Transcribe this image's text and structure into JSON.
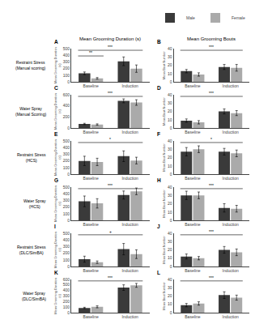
{
  "chart_data": [
    {
      "type": "bar",
      "title": "Mean Grooming Duration (s)",
      "panel_label": "A",
      "row_label": "Restraint Stress\n(Manual scoring)",
      "ylabel": "Mean Grooming Duration\n(s)",
      "categories": [
        "Baseline",
        "Induction"
      ],
      "series": [
        {
          "name": "Male",
          "color": "#3a3a3a",
          "values": [
            130,
            310
          ],
          "errors": [
            20,
            65
          ]
        },
        {
          "name": "Female",
          "color": "#aaaaaa",
          "values": [
            55,
            200
          ],
          "errors": [
            12,
            55
          ]
        }
      ],
      "ylim": [
        0,
        500
      ],
      "yticks": [
        0,
        100,
        200,
        300,
        400,
        500
      ],
      "grid": false,
      "sig_between": "***",
      "sig_within": "**"
    },
    {
      "type": "bar",
      "title": "Mean Grooming Bouts",
      "panel_label": "B",
      "legend": "upper right",
      "ylabel": "Mean Bout Number",
      "categories": [
        "Baseline",
        "Induction"
      ],
      "series": [
        {
          "name": "Male",
          "color": "#3a3a3a",
          "values": [
            13,
            18
          ],
          "errors": [
            2,
            3
          ]
        },
        {
          "name": "Female",
          "color": "#aaaaaa",
          "values": [
            9,
            17
          ],
          "errors": [
            2,
            4
          ]
        }
      ],
      "ylim": [
        0,
        40
      ],
      "yticks": [
        0,
        10,
        20,
        30,
        40
      ],
      "grid": false,
      "sig_between": "***"
    },
    {
      "type": "bar",
      "panel_label": "C",
      "row_label": "Water Spray\n(Manual Scoring)",
      "ylabel": "Mean Grooming Duration\n(s)",
      "categories": [
        "Baseline",
        "Induction"
      ],
      "series": [
        {
          "name": "Male",
          "color": "#3a3a3a",
          "values": [
            75,
            490
          ],
          "errors": [
            12,
            35
          ]
        },
        {
          "name": "Female",
          "color": "#aaaaaa",
          "values": [
            65,
            460
          ],
          "errors": [
            12,
            50
          ]
        }
      ],
      "ylim": [
        0,
        600
      ],
      "yticks": [
        0,
        200,
        400,
        600
      ],
      "grid": false,
      "sig_between": "***"
    },
    {
      "type": "bar",
      "panel_label": "D",
      "ylabel": "Mean Bout Number",
      "categories": [
        "Baseline",
        "Induction"
      ],
      "series": [
        {
          "name": "Male",
          "color": "#3a3a3a",
          "values": [
            9,
            20
          ],
          "errors": [
            2,
            3
          ]
        },
        {
          "name": "Female",
          "color": "#aaaaaa",
          "values": [
            7,
            18
          ],
          "errors": [
            2,
            3
          ]
        }
      ],
      "ylim": [
        0,
        40
      ],
      "yticks": [
        0,
        10,
        20,
        30,
        40
      ],
      "grid": false,
      "sig_between": "***"
    },
    {
      "type": "bar",
      "panel_label": "E",
      "row_label": "Restraint Stress\n(HCS)",
      "ylabel": "Mean Grooming Duration\n(s)",
      "categories": [
        "Baseline",
        "Induction"
      ],
      "series": [
        {
          "name": "Male",
          "color": "#3a3a3a",
          "values": [
            200,
            270
          ],
          "errors": [
            70,
            80
          ]
        },
        {
          "name": "Female",
          "color": "#aaaaaa",
          "values": [
            185,
            205
          ],
          "errors": [
            55,
            50
          ]
        }
      ],
      "ylim": [
        0,
        500
      ],
      "yticks": [
        0,
        100,
        200,
        300,
        400,
        500
      ],
      "grid": false,
      "sig_between": "*"
    },
    {
      "type": "bar",
      "panel_label": "F",
      "ylabel": "Mean Bout Number",
      "categories": [
        "Baseline",
        "Induction"
      ],
      "series": [
        {
          "name": "Male",
          "color": "#3a3a3a",
          "values": [
            27,
            27
          ],
          "errors": [
            5,
            4
          ]
        },
        {
          "name": "Female",
          "color": "#aaaaaa",
          "values": [
            30,
            25
          ],
          "errors": [
            4,
            4
          ]
        }
      ],
      "ylim": [
        0,
        40
      ],
      "yticks": [
        0,
        10,
        20,
        30,
        40
      ],
      "grid": false,
      "sig_between": "*"
    },
    {
      "type": "bar",
      "panel_label": "G",
      "row_label": "Water Spray\n(HCS)",
      "ylabel": "Mean Grooming Duration\n(s)",
      "categories": [
        "Baseline",
        "Induction"
      ],
      "series": [
        {
          "name": "Male",
          "color": "#3a3a3a",
          "values": [
            285,
            380
          ],
          "errors": [
            80,
            60
          ]
        },
        {
          "name": "Female",
          "color": "#aaaaaa",
          "values": [
            255,
            435
          ],
          "errors": [
            70,
            50
          ]
        }
      ],
      "ylim": [
        0,
        500
      ],
      "yticks": [
        0,
        100,
        200,
        300,
        400,
        500
      ],
      "grid": false,
      "sig_between": "***"
    },
    {
      "type": "bar",
      "panel_label": "H",
      "ylabel": "Mean Bout Number",
      "categories": [
        "Baseline",
        "Induction"
      ],
      "series": [
        {
          "name": "Male",
          "color": "#3a3a3a",
          "values": [
            30,
            15
          ],
          "errors": [
            5,
            5
          ]
        },
        {
          "name": "Female",
          "color": "#aaaaaa",
          "values": [
            30,
            14
          ],
          "errors": [
            4,
            4
          ]
        }
      ],
      "ylim": [
        0,
        40
      ],
      "yticks": [
        0,
        10,
        20,
        30,
        40
      ],
      "grid": false,
      "sig_between": "***"
    },
    {
      "type": "bar",
      "panel_label": "I",
      "row_label": "Restraint Stress\n(DLC/SimBA)",
      "ylabel": "Mean Grooming Duration\n(s)",
      "categories": [
        "Baseline",
        "Induction"
      ],
      "series": [
        {
          "name": "Male",
          "color": "#3a3a3a",
          "values": [
            110,
            260
          ],
          "errors": [
            45,
            85
          ]
        },
        {
          "name": "Female",
          "color": "#aaaaaa",
          "values": [
            65,
            185
          ],
          "errors": [
            18,
            65
          ]
        }
      ],
      "ylim": [
        0,
        500
      ],
      "yticks": [
        0,
        100,
        200,
        300,
        400,
        500
      ],
      "grid": false,
      "sig_between": "+"
    },
    {
      "type": "bar",
      "panel_label": "J",
      "ylabel": "Mean Bout Number",
      "categories": [
        "Baseline",
        "Induction"
      ],
      "series": [
        {
          "name": "Male",
          "color": "#3a3a3a",
          "values": [
            12,
            20
          ],
          "errors": [
            3,
            4
          ]
        },
        {
          "name": "Female",
          "color": "#aaaaaa",
          "values": [
            10,
            17
          ],
          "errors": [
            2,
            4
          ]
        }
      ],
      "ylim": [
        0,
        40
      ],
      "yticks": [
        0,
        10,
        20,
        30,
        40
      ],
      "grid": false,
      "sig_between": "***"
    },
    {
      "type": "bar",
      "panel_label": "K",
      "row_label": "Water Spray\n(DLC/SimBA)",
      "ylabel": "Mean Grooming Duration\n(s)",
      "categories": [
        "Baseline",
        "Induction"
      ],
      "series": [
        {
          "name": "Male",
          "color": "#3a3a3a",
          "values": [
            85,
            450
          ],
          "errors": [
            12,
            50
          ]
        },
        {
          "name": "Female",
          "color": "#aaaaaa",
          "values": [
            105,
            490
          ],
          "errors": [
            18,
            35
          ]
        }
      ],
      "ylim": [
        0,
        600
      ],
      "yticks": [
        0,
        100,
        200,
        300,
        400,
        500,
        600
      ],
      "grid": false,
      "sig_between": "***"
    },
    {
      "type": "bar",
      "panel_label": "L",
      "ylabel": "Mean Bout Number",
      "categories": [
        "Baseline",
        "Induction"
      ],
      "series": [
        {
          "name": "Male",
          "color": "#3a3a3a",
          "values": [
            9,
            21
          ],
          "errors": [
            2,
            4
          ]
        },
        {
          "name": "Female",
          "color": "#aaaaaa",
          "values": [
            11,
            18
          ],
          "errors": [
            2,
            3
          ]
        }
      ],
      "ylim": [
        0,
        40
      ],
      "yticks": [
        0,
        10,
        20,
        30,
        40
      ],
      "grid": false,
      "sig_between": "***"
    }
  ]
}
